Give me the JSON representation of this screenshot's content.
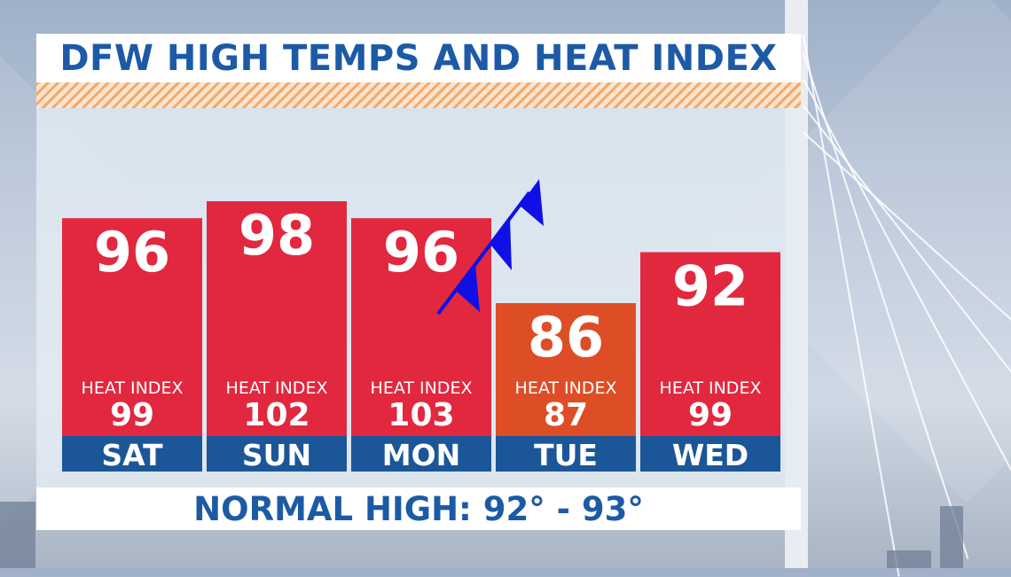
{
  "title": "DFW HIGH TEMPS AND HEAT INDEX",
  "footer": "NORMAL HIGH: 92° - 93°",
  "heat_index_label": "HEAT INDEX",
  "colors": {
    "title_blue": "#1d5aa6",
    "bar_red": "#e1283f",
    "bar_orange": "#dd4e26",
    "day_strip": "#1b5698",
    "front_blue": "#1010e6",
    "hatch_orange": "#f5a868"
  },
  "front_icon": "cold-front-icon",
  "chart_data": {
    "type": "bar",
    "title": "DFW HIGH TEMPS AND HEAT INDEX",
    "categories": [
      "SAT",
      "SUN",
      "MON",
      "TUE",
      "WED"
    ],
    "series": [
      {
        "name": "",
        "values": [
          96,
          98,
          96,
          86,
          92
        ]
      },
      {
        "name": "HEAT INDEX",
        "values": [
          99,
          102,
          103,
          87,
          99
        ]
      }
    ],
    "bar_colors": [
      "#e1283f",
      "#e1283f",
      "#e1283f",
      "#dd4e26",
      "#e1283f"
    ],
    "xlabel": "",
    "ylabel": "",
    "grid": false,
    "annotations": [
      "NORMAL HIGH: 92° - 93°"
    ]
  }
}
